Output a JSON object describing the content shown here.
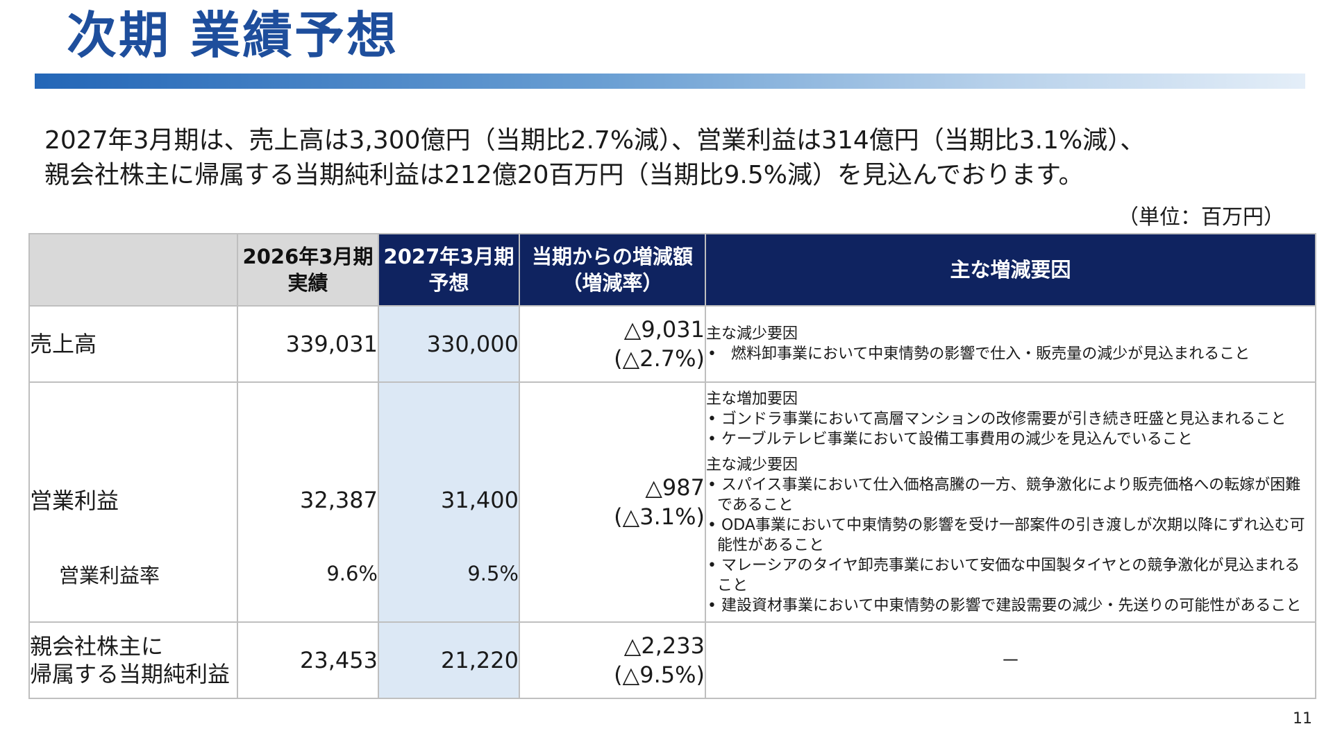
{
  "title": "次期 業績予想",
  "summary": {
    "line1": "2027年3月期は、売上高は3,300億円（当期比2.7%減）、営業利益は314億円（当期比3.1%減）、",
    "line2": "親会社株主に帰属する当期純利益は212億20百万円（当期比9.5%減）を見込んでおります。"
  },
  "unit": "（単位：百万円）",
  "table": {
    "headers": {
      "actual_line1": "2026年3月期",
      "actual_line2": "実績",
      "forecast_line1": "2027年3月期",
      "forecast_line2": "予想",
      "change_line1": "当期からの増減額",
      "change_line2": "（増減率）",
      "factors": "主な増減要因"
    },
    "rows": {
      "sales": {
        "label": "売上高",
        "actual": "339,031",
        "forecast": "330,000",
        "change": "△9,031",
        "rate": "(△2.7%)",
        "factors": {
          "decrease_head": "主な減少要因",
          "decrease_items": [
            "燃料卸事業において中東情勢の影響で仕入・販売量の減少が見込まれること"
          ]
        }
      },
      "operating": {
        "label": "営業利益",
        "actual": "32,387",
        "forecast": "31,400",
        "change": "△987",
        "rate": "(△3.1%)",
        "margin_label": "営業利益率",
        "margin_actual": "9.6%",
        "margin_forecast": "9.5%",
        "factors": {
          "increase_head": "主な増加要因",
          "increase_items": [
            "ゴンドラ事業において高層マンションの改修需要が引き続き旺盛と見込まれること",
            "ケーブルテレビ事業において設備工事費用の減少を見込んでいること"
          ],
          "decrease_head": "主な減少要因",
          "decrease_items": [
            "スパイス事業において仕入価格高騰の一方、競争激化により販売価格への転嫁が困難であること",
            "ODA事業において中東情勢の影響を受け一部案件の引き渡しが次期以降にずれ込む可能性があること",
            "マレーシアのタイヤ卸売事業において安価な中国製タイヤとの競争激化が見込まれること",
            "建設資材事業において中東情勢の影響で建設需要の減少・先送りの可能性があること"
          ]
        }
      },
      "net": {
        "label_line1": "親会社株主に",
        "label_line2": "帰属する当期純利益",
        "actual": "23,453",
        "forecast": "21,220",
        "change": "△2,233",
        "rate": "(△9.5%)",
        "factors": "－"
      }
    }
  },
  "page_number": "11",
  "colors": {
    "title": "#1e4e9c",
    "header_dark": "#0f2360",
    "header_light": "#d9d9d9",
    "forecast_column": "#dce8f5"
  }
}
